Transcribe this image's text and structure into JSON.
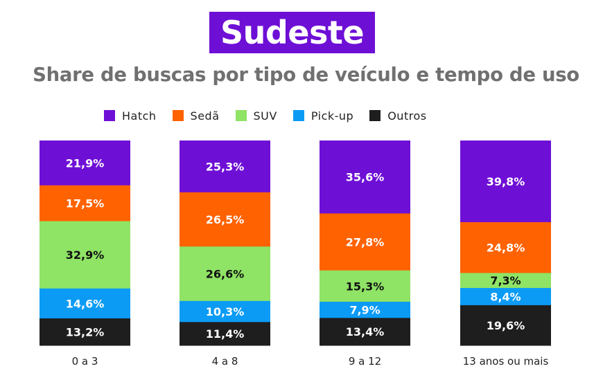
{
  "title": "Sudeste",
  "subtitle": "Share de buscas por tipo de veículo e tempo de uso",
  "legend": {
    "items": [
      {
        "label": "Hatch",
        "color": "#6e0fd6"
      },
      {
        "label": "Sedã",
        "color": "#ff6200"
      },
      {
        "label": "SUV",
        "color": "#8fe365"
      },
      {
        "label": "Pick-up",
        "color": "#0b9bf5"
      },
      {
        "label": "Outros",
        "color": "#1e1e1e"
      }
    ]
  },
  "chart_data": {
    "type": "bar",
    "stacked": true,
    "title": "Sudeste",
    "subtitle": "Share de buscas por tipo de veículo e tempo de uso",
    "categories": [
      "0 a 3",
      "4 a 8",
      "9 a 12",
      "13 anos ou mais"
    ],
    "series": [
      {
        "name": "Hatch",
        "color": "#6e0fd6",
        "values": [
          21.9,
          25.3,
          35.6,
          39.8
        ],
        "labels": [
          "21,9%",
          "25,3%",
          "35,6%",
          "39,8%"
        ],
        "label_color": "#ffffff"
      },
      {
        "name": "Sedã",
        "color": "#ff6200",
        "values": [
          17.5,
          26.5,
          27.8,
          24.8
        ],
        "labels": [
          "17,5%",
          "26,5%",
          "27,8%",
          "24,8%"
        ],
        "label_color": "#ffffff"
      },
      {
        "name": "SUV",
        "color": "#8fe365",
        "values": [
          32.9,
          26.6,
          15.3,
          7.3
        ],
        "labels": [
          "32,9%",
          "26,6%",
          "15,3%",
          "7,3%"
        ],
        "label_color": "#111111"
      },
      {
        "name": "Pick-up",
        "color": "#0b9bf5",
        "values": [
          14.6,
          10.3,
          7.9,
          8.4
        ],
        "labels": [
          "14,6%",
          "10,3%",
          "7,9%",
          "8,4%"
        ],
        "label_color": "#ffffff"
      },
      {
        "name": "Outros",
        "color": "#1e1e1e",
        "values": [
          13.2,
          11.4,
          13.4,
          19.6
        ],
        "labels": [
          "13,2%",
          "11,4%",
          "13,4%",
          "19,6%"
        ],
        "label_color": "#ffffff"
      }
    ],
    "legend_position": "top",
    "grid": false
  }
}
